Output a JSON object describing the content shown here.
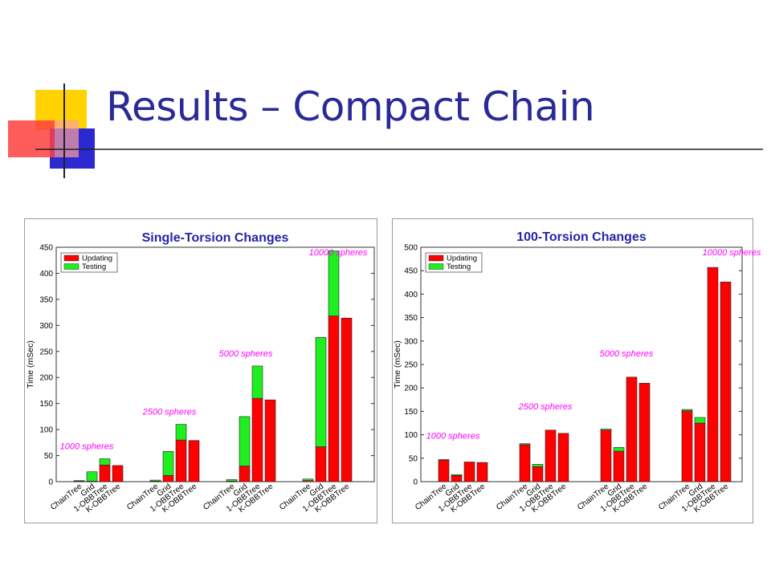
{
  "slide": {
    "title": "Results – Compact Chain"
  },
  "colors": {
    "updating": "#ff0000",
    "testing": "#1fee1f",
    "annotation": "#ff00ff",
    "title_blue": "#2a2a96",
    "chart_title": "#2424a8"
  },
  "chart_data": [
    {
      "type": "bar",
      "stacked": true,
      "title": "Single-Torsion Changes",
      "ylabel": "Time (mSec)",
      "xlabel": "",
      "ylim": [
        0,
        450
      ],
      "yticks": [
        "0",
        "50",
        "100",
        "150",
        "200",
        "250",
        "300",
        "350",
        "400",
        "450"
      ],
      "legend_position": "top-left",
      "groups": [
        {
          "annotation": "1000 spheres",
          "categories": [
            "ChainTree",
            "Grid",
            "1-OBBTree",
            "K-OBBTree"
          ],
          "updating": [
            1,
            1,
            32,
            31
          ],
          "testing": [
            1,
            18,
            12,
            0
          ]
        },
        {
          "annotation": "2500 spheres",
          "categories": [
            "ChainTree",
            "Grid",
            "1-OBBTree",
            "K-OBBTree"
          ],
          "updating": [
            1,
            12,
            80,
            79
          ],
          "testing": [
            2,
            46,
            30,
            0
          ]
        },
        {
          "annotation": "5000 spheres",
          "categories": [
            "ChainTree",
            "Grid",
            "1-OBBTree",
            "K-OBBTree"
          ],
          "updating": [
            1,
            30,
            160,
            157
          ],
          "testing": [
            3,
            95,
            62,
            0
          ]
        },
        {
          "annotation": "10000 spheres",
          "categories": [
            "ChainTree",
            "Grid",
            "1-OBBTree",
            "K-OBBTree"
          ],
          "updating": [
            2,
            67,
            318,
            314
          ],
          "testing": [
            3,
            210,
            125,
            0
          ]
        }
      ],
      "series": [
        {
          "name": "Updating"
        },
        {
          "name": "Testing"
        }
      ]
    },
    {
      "type": "bar",
      "stacked": true,
      "title": "100-Torsion Changes",
      "ylabel": "Time (mSec)",
      "xlabel": "",
      "ylim": [
        0,
        500
      ],
      "yticks": [
        "0",
        "50",
        "100",
        "150",
        "200",
        "250",
        "300",
        "350",
        "400",
        "450",
        "500"
      ],
      "legend_position": "top-left",
      "groups": [
        {
          "annotation": "1000 spheres",
          "categories": [
            "ChainTree",
            "Grid",
            "1-OBBTree",
            "K-OBBTree"
          ],
          "updating": [
            46,
            13,
            42,
            41
          ],
          "testing": [
            1,
            2,
            0,
            0
          ]
        },
        {
          "annotation": "2500 spheres",
          "categories": [
            "ChainTree",
            "Grid",
            "1-OBBTree",
            "K-OBBTree"
          ],
          "updating": [
            79,
            32,
            110,
            103
          ],
          "testing": [
            2,
            5,
            0,
            0
          ]
        },
        {
          "annotation": "5000 spheres",
          "categories": [
            "ChainTree",
            "Grid",
            "1-OBBTree",
            "K-OBBTree"
          ],
          "updating": [
            110,
            65,
            223,
            210
          ],
          "testing": [
            2,
            8,
            0,
            0
          ]
        },
        {
          "annotation": "10000 spheres",
          "categories": [
            "ChainTree",
            "Grid",
            "1-OBBTree",
            "K-OBBTree"
          ],
          "updating": [
            151,
            125,
            457,
            426
          ],
          "testing": [
            3,
            12,
            0,
            0
          ]
        }
      ],
      "series": [
        {
          "name": "Updating"
        },
        {
          "name": "Testing"
        }
      ]
    }
  ]
}
